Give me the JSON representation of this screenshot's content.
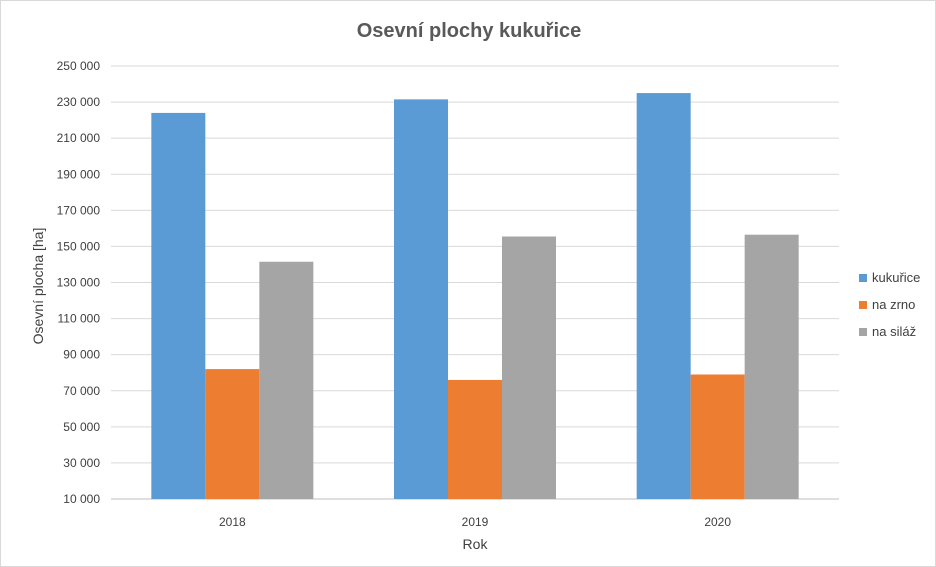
{
  "chart_data": {
    "type": "bar",
    "title": "Osevní plochy kukuřice",
    "xlabel": "Rok",
    "ylabel": "Osevní plocha [ha]",
    "categories": [
      "2018",
      "2019",
      "2020"
    ],
    "series": [
      {
        "name": "kukuřice",
        "color": "#5b9bd5",
        "values": [
          224000,
          231500,
          235000
        ]
      },
      {
        "name": "na zrno",
        "color": "#ed7d31",
        "values": [
          82000,
          76000,
          79000
        ]
      },
      {
        "name": "na siláž",
        "color": "#a5a5a5",
        "values": [
          141500,
          155500,
          156500
        ]
      }
    ],
    "ylim": [
      10000,
      250000
    ],
    "yticks": [
      10000,
      30000,
      50000,
      70000,
      90000,
      110000,
      130000,
      150000,
      170000,
      190000,
      210000,
      230000,
      250000
    ],
    "ytick_labels": [
      "10 000",
      "30 000",
      "50 000",
      "70 000",
      "90 000",
      "110 000",
      "130 000",
      "150 000",
      "170 000",
      "190 000",
      "210 000",
      "230 000",
      "250 000"
    ],
    "grid": true,
    "legend_position": "right"
  }
}
